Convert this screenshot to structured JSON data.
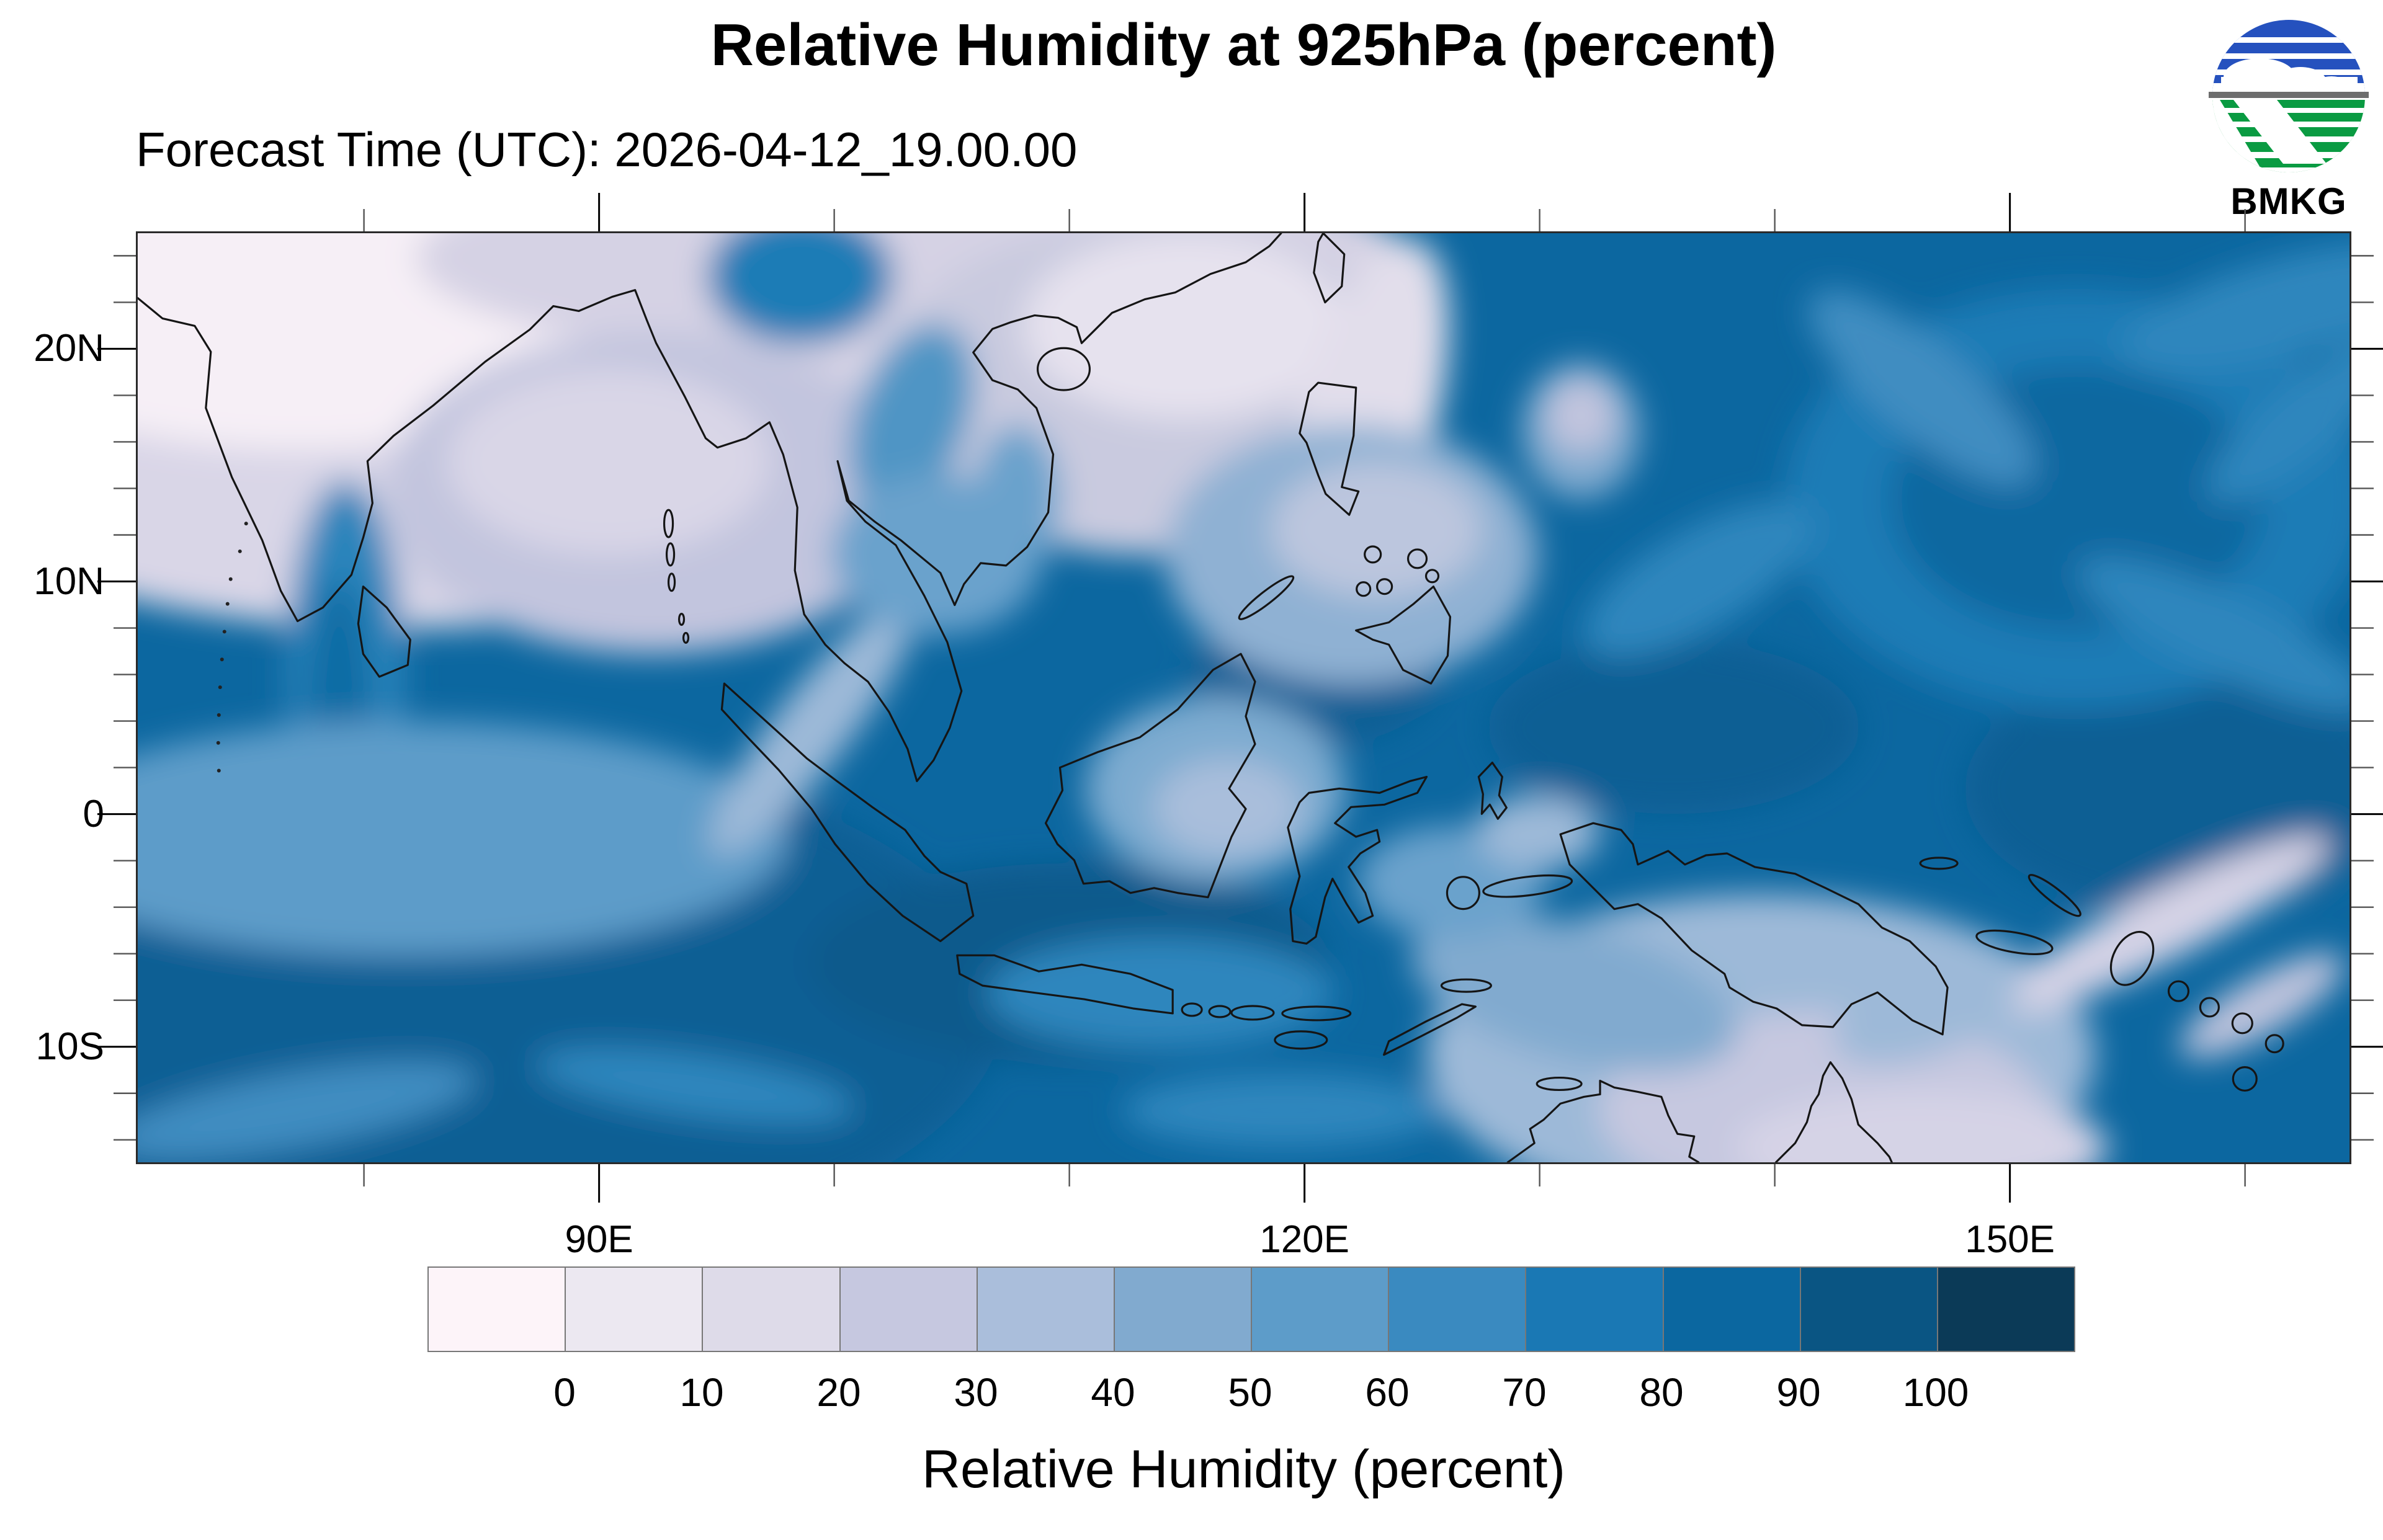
{
  "figure": {
    "title": "Relative Humidity at 925hPa (percent)",
    "subtitle": "Forecast Time (UTC): 2026-04-12_19.00.00"
  },
  "logo": {
    "text": "BMKG"
  },
  "map": {
    "lat_ticks": [
      {
        "label": "20N",
        "lat": 20
      },
      {
        "label": "10N",
        "lat": 10
      },
      {
        "label": "0",
        "lat": 0
      },
      {
        "label": "10S",
        "lat": -10
      }
    ],
    "lon_ticks": [
      {
        "label": "90E",
        "lon": 90
      },
      {
        "label": "120E",
        "lon": 120
      },
      {
        "label": "150E",
        "lon": 150
      }
    ]
  },
  "colorbar": {
    "title": "Relative Humidity (percent)",
    "tick_labels": [
      "0",
      "10",
      "20",
      "30",
      "40",
      "50",
      "60",
      "70",
      "80",
      "90",
      "100"
    ],
    "cell_colors": [
      "#fdf4f9",
      "#ece8f1",
      "#dedbe9",
      "#c6c8e0",
      "#aabedb",
      "#81aacf",
      "#5d9cc9",
      "#3a8ac0",
      "#1a78b4",
      "#0b67a0",
      "#0a5583",
      "#0b3a57"
    ],
    "units": "percent"
  },
  "chart_data": {
    "type": "heatmap",
    "title": "Relative Humidity at 925hPa (percent)",
    "subtitle": "Forecast Time (UTC): 2026-04-12_19.00.00",
    "xlabel_ticks": [
      "90E",
      "120E",
      "150E"
    ],
    "ylabel_ticks": [
      "20N",
      "10N",
      "0",
      "10S"
    ],
    "colorbar_levels": [
      0,
      10,
      20,
      30,
      40,
      50,
      60,
      70,
      80,
      90,
      100
    ],
    "colorbar_title": "Relative Humidity (percent)",
    "legend_position": "bottom"
  }
}
